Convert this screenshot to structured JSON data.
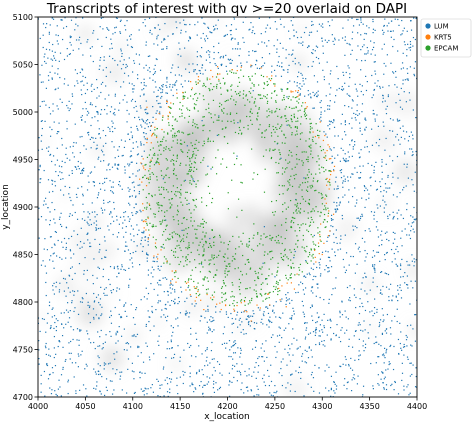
{
  "chart_data": {
    "type": "scatter",
    "title": "Transcripts of interest with qv >=20 overlaid on DAPI",
    "xlabel": "x_location",
    "ylabel": "y_location",
    "xlim": [
      4000,
      4400
    ],
    "ylim": [
      4700,
      5100
    ],
    "xticks": [
      "4000",
      "4050",
      "4100",
      "4150",
      "4200",
      "4250",
      "4300",
      "4350",
      "4400"
    ],
    "yticks": [
      "4700",
      "4750",
      "4800",
      "4850",
      "4900",
      "4950",
      "5000",
      "5050",
      "5100"
    ],
    "grid": false,
    "legend_position": "outside-top-right",
    "background": "DAPI grayscale image",
    "series": [
      {
        "name": "LUM",
        "color": "#1f77b4",
        "distribution": "stroma surrounding ring",
        "sample_points": [
          [
            4012,
            5082
          ],
          [
            4034,
            4740
          ],
          [
            4060,
            4995
          ],
          [
            4072,
            4815
          ],
          [
            4090,
            5050
          ],
          [
            4105,
            4955
          ],
          [
            4318,
            4902
          ],
          [
            4342,
            4820
          ],
          [
            4365,
            4985
          ],
          [
            4390,
            4742
          ],
          [
            4250,
            4712
          ],
          [
            4180,
            5088
          ]
        ]
      },
      {
        "name": "KRT5",
        "color": "#ff7f0e",
        "distribution": "outer edge of epithelial ring",
        "sample_points": [
          [
            4115,
            5005
          ],
          [
            4128,
            4945
          ],
          [
            4140,
            4820
          ],
          [
            4175,
            4792
          ],
          [
            4225,
            4780
          ],
          [
            4262,
            4795
          ],
          [
            4300,
            4850
          ],
          [
            4305,
            4930
          ]
        ]
      },
      {
        "name": "EPCAM",
        "color": "#2ca02c",
        "distribution": "epithelial ring around hollow lumen",
        "sample_points": [
          [
            4150,
            5010
          ],
          [
            4200,
            5040
          ],
          [
            4250,
            5000
          ],
          [
            4140,
            4900
          ],
          [
            4170,
            4850
          ],
          [
            4230,
            4830
          ],
          [
            4280,
            4870
          ],
          [
            4285,
            4950
          ],
          [
            4190,
            4960
          ]
        ]
      }
    ]
  }
}
